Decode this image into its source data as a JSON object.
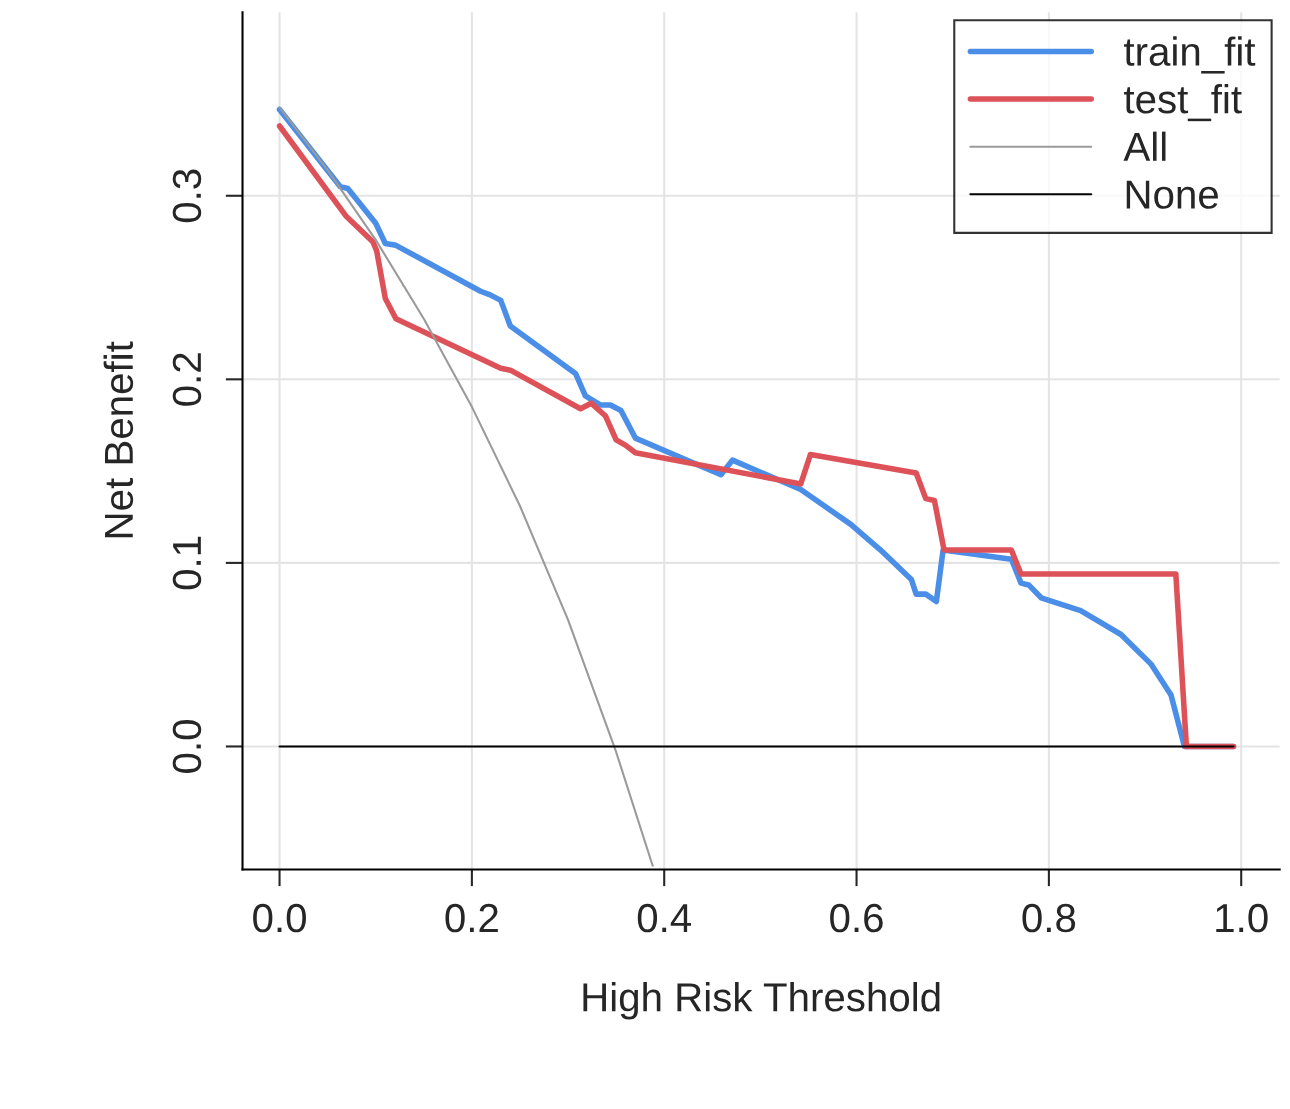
{
  "chart_data": {
    "type": "line",
    "xlabel": "High Risk Threshold",
    "ylabel": "Net Benefit",
    "xlim": [
      -0.0385,
      1.04
    ],
    "ylim": [
      -0.067,
      0.4
    ],
    "xticks": [
      {
        "value": 0,
        "label": "0.0"
      },
      {
        "value": 0.2,
        "label": "0.2"
      },
      {
        "value": 0.4,
        "label": "0.4"
      },
      {
        "value": 0.6,
        "label": "0.6"
      },
      {
        "value": 0.8,
        "label": "0.8"
      },
      {
        "value": 1,
        "label": "1.0"
      }
    ],
    "yticks": [
      {
        "value": 0,
        "label": "0.0"
      },
      {
        "value": 0.1,
        "label": "0.1"
      },
      {
        "value": 0.2,
        "label": "0.2"
      },
      {
        "value": 0.3,
        "label": "0.3"
      }
    ],
    "grid": true,
    "legend": "top right",
    "series": [
      {
        "name": "train_fit",
        "color": "#4a8ee8",
        "x": [
          0,
          0.063,
          0.071,
          0.1,
          0.11,
          0.121,
          0.209,
          0.219,
          0.23,
          0.24,
          0.308,
          0.318,
          0.334,
          0.344,
          0.355,
          0.37,
          0.459,
          0.471,
          0.542,
          0.594,
          0.625,
          0.657,
          0.662,
          0.672,
          0.683,
          0.69,
          0.761,
          0.771,
          0.779,
          0.792,
          0.833,
          0.875,
          0.906,
          0.927,
          0.941,
          0.992
        ],
        "values": [
          0.347,
          0.305,
          0.304,
          0.285,
          0.274,
          0.273,
          0.248,
          0.246,
          0.243,
          0.229,
          0.203,
          0.191,
          0.186,
          0.186,
          0.183,
          0.168,
          0.148,
          0.156,
          0.14,
          0.121,
          0.107,
          0.091,
          0.083,
          0.083,
          0.079,
          0.107,
          0.102,
          0.089,
          0.088,
          0.081,
          0.074,
          0.061,
          0.045,
          0.028,
          0.0,
          0.0
        ]
      },
      {
        "name": "test_fit",
        "color": "#dd5258",
        "x": [
          0,
          0.069,
          0.097,
          0.101,
          0.11,
          0.121,
          0.23,
          0.24,
          0.313,
          0.324,
          0.339,
          0.35,
          0.36,
          0.37,
          0.542,
          0.552,
          0.662,
          0.672,
          0.681,
          0.691,
          0.761,
          0.771,
          0.932,
          0.943,
          0.992
        ],
        "values": [
          0.338,
          0.289,
          0.275,
          0.27,
          0.244,
          0.233,
          0.206,
          0.205,
          0.184,
          0.187,
          0.18,
          0.167,
          0.164,
          0.16,
          0.143,
          0.159,
          0.149,
          0.135,
          0.134,
          0.107,
          0.107,
          0.094,
          0.094,
          0.0,
          0.0
        ]
      },
      {
        "name": "All",
        "color": "#9a9a9a",
        "x": [
          0,
          0.05,
          0.1,
          0.15,
          0.2,
          0.25,
          0.3,
          0.35,
          0.388
        ],
        "values": [
          0.348,
          0.314,
          0.276,
          0.233,
          0.185,
          0.131,
          0.069,
          -0.003,
          -0.065
        ]
      },
      {
        "name": "None",
        "color": "#000000",
        "x": [
          0,
          0.992
        ],
        "values": [
          0.0,
          0.0
        ]
      }
    ]
  }
}
